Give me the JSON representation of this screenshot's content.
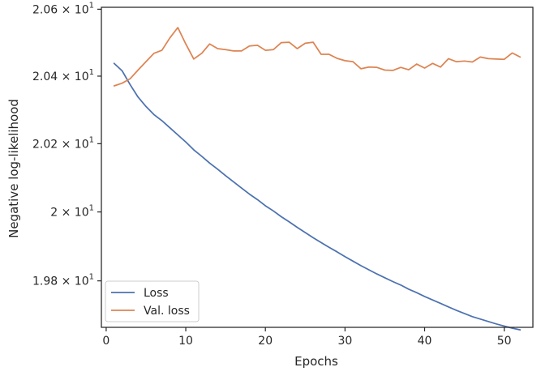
{
  "chart_data": {
    "type": "line",
    "xlabel": "Epochs",
    "ylabel": "Negative log-likelihood",
    "xlim": [
      -0.6,
      53.6
    ],
    "ylim": [
      19.6663,
      20.6058
    ],
    "y_scale": "log",
    "x_ticks": [
      0,
      10,
      20,
      30,
      40,
      50
    ],
    "y_ticks": [
      {
        "value": 19.8,
        "mant": "1.98",
        "exp": "1"
      },
      {
        "value": 20.0,
        "mant": "2",
        "exp": "1"
      },
      {
        "value": 20.2,
        "mant": "2.02",
        "exp": "1"
      },
      {
        "value": 20.4,
        "mant": "2.04",
        "exp": "1"
      },
      {
        "value": 20.6,
        "mant": "2.06",
        "exp": "1"
      }
    ],
    "y_tick_times": "×",
    "y_tick_base": "10",
    "grid": false,
    "legend_loc": "lower left",
    "x": [
      1,
      2,
      3,
      4,
      5,
      6,
      7,
      8,
      9,
      10,
      11,
      12,
      13,
      14,
      15,
      16,
      17,
      18,
      19,
      20,
      21,
      22,
      23,
      24,
      25,
      26,
      27,
      28,
      29,
      30,
      31,
      32,
      33,
      34,
      35,
      36,
      37,
      38,
      39,
      40,
      41,
      42,
      43,
      44,
      45,
      46,
      47,
      48,
      49,
      50,
      51,
      52
    ],
    "series": [
      {
        "name": "Loss",
        "color": "#4c72b0",
        "values": [
          20.438,
          20.416,
          20.375,
          20.338,
          20.31,
          20.286,
          20.268,
          20.247,
          20.226,
          20.205,
          20.182,
          20.163,
          20.143,
          20.125,
          20.106,
          20.088,
          20.07,
          20.052,
          20.036,
          20.018,
          20.003,
          19.986,
          19.971,
          19.955,
          19.94,
          19.925,
          19.911,
          19.897,
          19.884,
          19.87,
          19.857,
          19.844,
          19.832,
          19.82,
          19.809,
          19.798,
          19.788,
          19.776,
          19.766,
          19.755,
          19.745,
          19.735,
          19.725,
          19.715,
          19.706,
          19.697,
          19.69,
          19.683,
          19.676,
          19.67,
          19.664,
          19.659
        ]
      },
      {
        "name": "Val. loss",
        "color": "#dd8452",
        "values": [
          20.371,
          20.379,
          20.392,
          20.418,
          20.443,
          20.468,
          20.477,
          20.514,
          20.545,
          20.496,
          20.451,
          20.468,
          20.496,
          20.482,
          20.479,
          20.475,
          20.475,
          20.49,
          20.492,
          20.477,
          20.479,
          20.5,
          20.501,
          20.482,
          20.498,
          20.501,
          20.465,
          20.465,
          20.453,
          20.446,
          20.443,
          20.422,
          20.427,
          20.426,
          20.418,
          20.417,
          20.426,
          20.419,
          20.436,
          20.424,
          20.438,
          20.427,
          20.452,
          20.443,
          20.445,
          20.442,
          20.457,
          20.452,
          20.451,
          20.45,
          20.469,
          20.457
        ]
      }
    ]
  }
}
